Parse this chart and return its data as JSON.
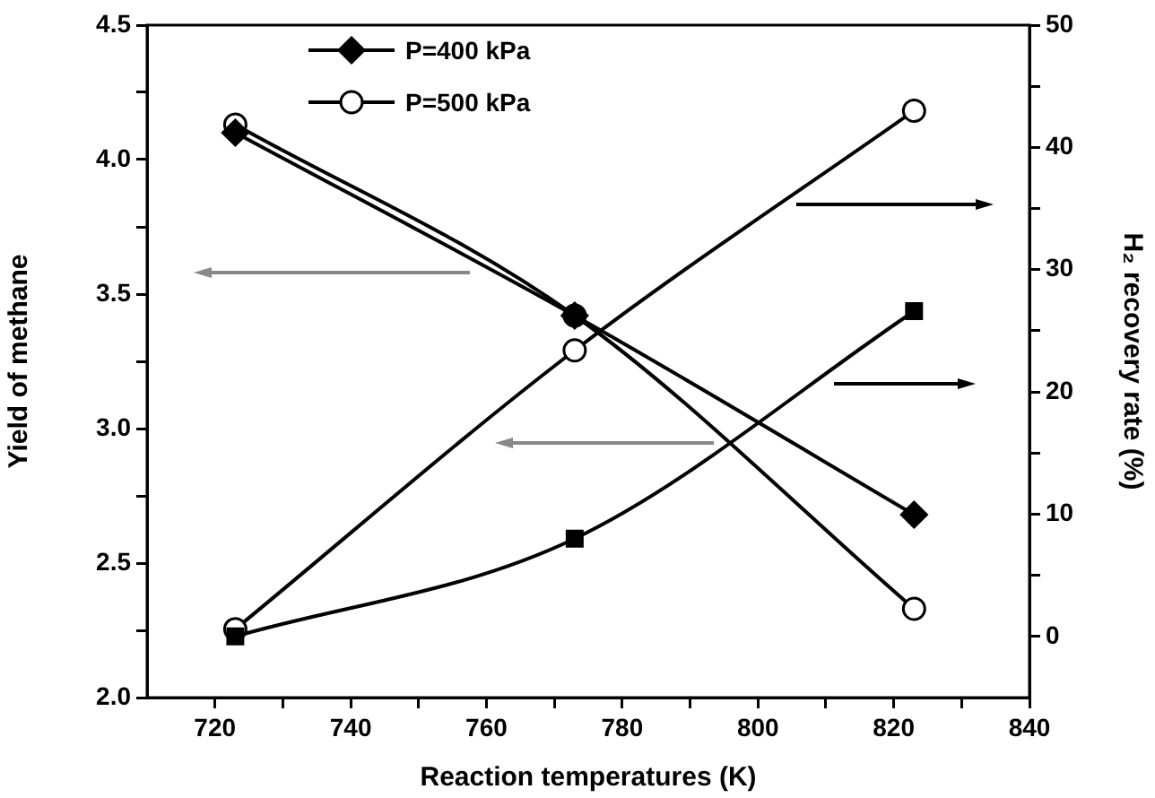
{
  "chart_data": {
    "type": "line",
    "xlabel": "Reaction temperatures (K)",
    "ylabel": "Yield of methane",
    "y2label": "H₂ recovery rate (%)",
    "x": [
      723,
      773,
      823
    ],
    "series": [
      {
        "name": "P=400 kPa",
        "color": "#000000",
        "marker": "diamond",
        "values": [
          4.1,
          3.42,
          2.68
        ]
      },
      {
        "name": "P=500 kPa",
        "color": "#000000",
        "marker": "circle",
        "values": [
          4.13,
          3.42,
          2.33
        ]
      },
      {
        "color": "#000000",
        "marker": "square",
        "axis": "y2",
        "values": [
          0,
          8.0,
          26.6
        ]
      },
      {
        "color": "#000000",
        "marker": "circle",
        "axis": "y2",
        "values": [
          0.6,
          23.4,
          43.0
        ]
      }
    ],
    "xlim": [
      710,
      840
    ],
    "xticks": [
      720,
      {
        "value": 730,
        "label": null
      },
      740,
      {
        "value": 750,
        "label": null
      },
      760,
      {
        "value": 770,
        "label": null
      },
      780,
      {
        "value": 790,
        "label": null
      },
      800,
      {
        "value": 810,
        "label": null
      },
      820,
      {
        "value": 830,
        "label": null
      },
      840
    ],
    "ylim": [
      2.0,
      4.5
    ],
    "yticks": [
      {
        "value": 2.0,
        "label": "2.0"
      },
      {
        "value": 2.25,
        "label": null
      },
      2.5,
      {
        "value": 2.75,
        "label": null
      },
      {
        "value": 3.0,
        "label": "3.0"
      },
      {
        "value": 3.25,
        "label": null
      },
      3.5,
      {
        "value": 3.75,
        "label": null
      },
      {
        "value": 4.0,
        "label": "4.0"
      },
      {
        "value": 4.25,
        "label": null
      },
      4.5
    ],
    "y2lim": [
      -5,
      50
    ],
    "y2ticks": [
      0,
      {
        "value": 5,
        "label": null
      },
      10,
      {
        "value": 15,
        "label": null
      },
      20,
      {
        "value": 25,
        "label": null
      },
      30,
      {
        "value": 35,
        "label": null
      },
      40,
      {
        "value": 45,
        "label": null
      },
      50
    ],
    "grid": false,
    "legend": "top left",
    "line_style": "solid"
  }
}
